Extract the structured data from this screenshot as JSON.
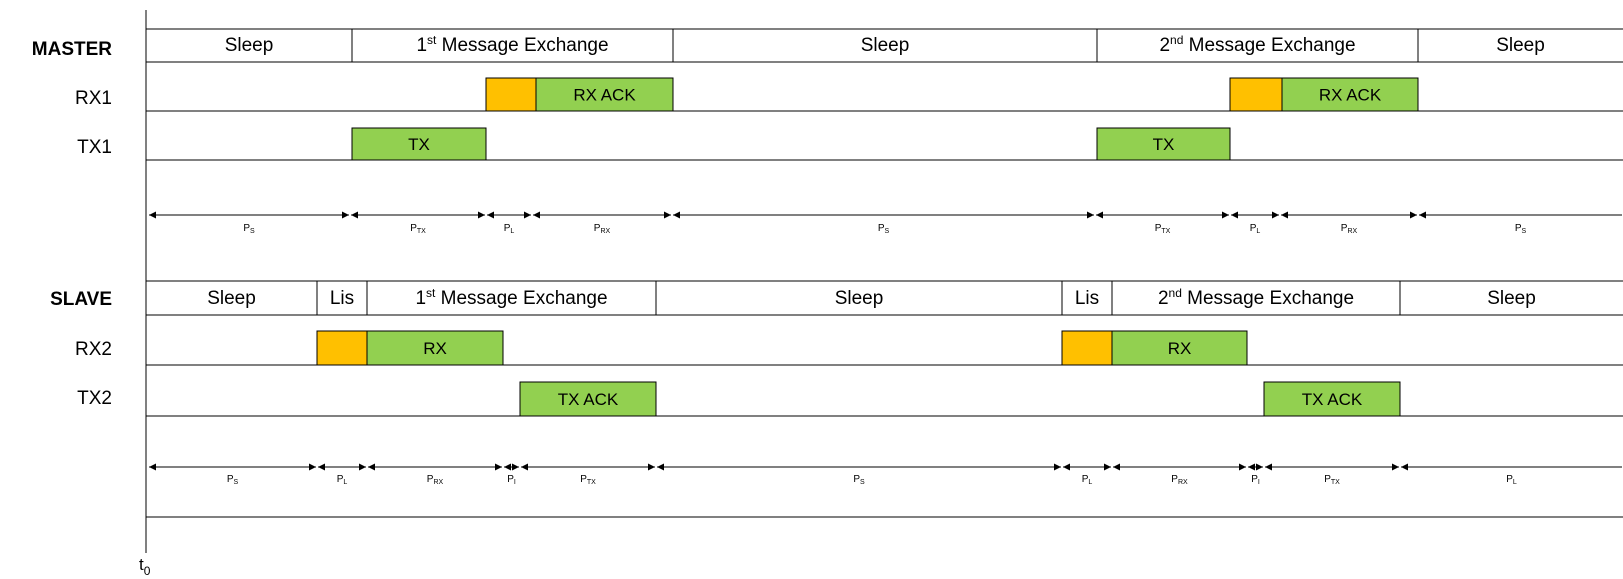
{
  "colors": {
    "green": "#92d050",
    "orange": "#ffc000",
    "line": "#000000"
  },
  "origin": {
    "label": "t",
    "sub": "0"
  },
  "master": {
    "title": "MASTER",
    "rows": [
      "RX1",
      "TX1"
    ],
    "phases": [
      {
        "text": "Sleep"
      },
      {
        "text": "1",
        "sup": "st",
        "rest": " Message Exchange"
      },
      {
        "text": "Sleep"
      },
      {
        "text": "2",
        "sup": "nd",
        "rest": " Message Exchange"
      },
      {
        "text": "Sleep"
      }
    ],
    "bars": [
      {
        "row": "RX1",
        "color": "orange",
        "text": ""
      },
      {
        "row": "RX1",
        "color": "green",
        "text": "RX ACK"
      },
      {
        "row": "TX1",
        "color": "green",
        "text": "TX"
      },
      {
        "row": "RX1",
        "color": "orange",
        "text": ""
      },
      {
        "row": "RX1",
        "color": "green",
        "text": "RX ACK"
      },
      {
        "row": "TX1",
        "color": "green",
        "text": "TX"
      }
    ],
    "periods": [
      {
        "main": "P",
        "sub": "S"
      },
      {
        "main": "P",
        "sub": "TX"
      },
      {
        "main": "P",
        "sub": "L"
      },
      {
        "main": "P",
        "sub": "RX"
      },
      {
        "main": "P",
        "sub": "S"
      },
      {
        "main": "P",
        "sub": "TX"
      },
      {
        "main": "P",
        "sub": "L"
      },
      {
        "main": "P",
        "sub": "RX"
      },
      {
        "main": "P",
        "sub": "S"
      }
    ]
  },
  "slave": {
    "title": "SLAVE",
    "rows": [
      "RX2",
      "TX2"
    ],
    "phases": [
      {
        "text": "Sleep"
      },
      {
        "text": "Lis"
      },
      {
        "text": "1",
        "sup": "st",
        "rest": " Message Exchange"
      },
      {
        "text": "Sleep"
      },
      {
        "text": "Lis"
      },
      {
        "text": "2",
        "sup": "nd",
        "rest": " Message Exchange"
      },
      {
        "text": "Sleep"
      }
    ],
    "bars": [
      {
        "row": "RX2",
        "color": "orange",
        "text": ""
      },
      {
        "row": "RX2",
        "color": "green",
        "text": "RX"
      },
      {
        "row": "TX2",
        "color": "green",
        "text": "TX ACK"
      },
      {
        "row": "RX2",
        "color": "orange",
        "text": ""
      },
      {
        "row": "RX2",
        "color": "green",
        "text": "RX"
      },
      {
        "row": "TX2",
        "color": "green",
        "text": "TX ACK"
      }
    ],
    "periods": [
      {
        "main": "P",
        "sub": "S"
      },
      {
        "main": "P",
        "sub": "L"
      },
      {
        "main": "P",
        "sub": "RX"
      },
      {
        "main": "P",
        "sub": "I"
      },
      {
        "main": "P",
        "sub": "TX"
      },
      {
        "main": "P",
        "sub": "S"
      },
      {
        "main": "P",
        "sub": "L"
      },
      {
        "main": "P",
        "sub": "RX"
      },
      {
        "main": "P",
        "sub": "I"
      },
      {
        "main": "P",
        "sub": "TX"
      },
      {
        "main": "P",
        "sub": "L"
      }
    ]
  }
}
